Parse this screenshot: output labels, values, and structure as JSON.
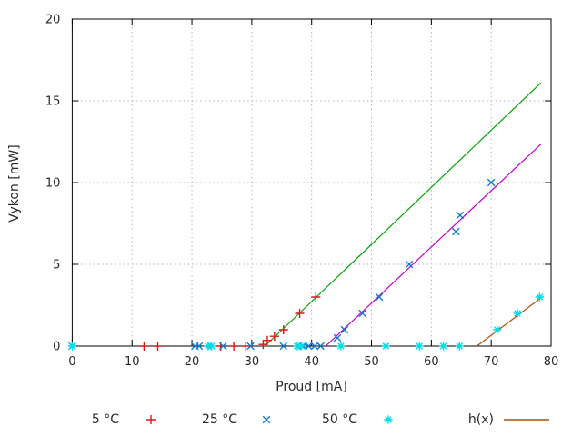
{
  "figure": {
    "background": "#ffffff",
    "text_color": "#2a2a2a",
    "border_color": "#000000",
    "grid_color": "#b3b3b3"
  },
  "chart_data": {
    "type": "scatter",
    "title": "",
    "xlabel": "Proud [mA]",
    "ylabel": "Vykon [mW]",
    "xlim": [
      0,
      80
    ],
    "ylim": [
      0,
      20
    ],
    "x_ticks": [
      0,
      10,
      20,
      30,
      40,
      50,
      60,
      70,
      80
    ],
    "y_ticks": [
      0,
      5,
      10,
      15,
      20
    ],
    "grid": "dotted",
    "legend_position": "bottom",
    "series": [
      {
        "name": "5 °C",
        "marker": "plus",
        "color": "#d91818",
        "points": [
          [
            12,
            0
          ],
          [
            14.3,
            0
          ],
          [
            24.8,
            0
          ],
          [
            27,
            0
          ],
          [
            29,
            0
          ],
          [
            31.9,
            0.1
          ],
          [
            32.6,
            0.35
          ],
          [
            33.8,
            0.6
          ],
          [
            35.3,
            1
          ],
          [
            38,
            2
          ],
          [
            40.7,
            3
          ]
        ]
      },
      {
        "name": "25 °C",
        "marker": "cross",
        "color": "#1079d2",
        "points": [
          [
            0,
            0
          ],
          [
            20.5,
            0
          ],
          [
            21.2,
            0
          ],
          [
            25.2,
            0
          ],
          [
            29.8,
            0
          ],
          [
            35.3,
            0
          ],
          [
            38.6,
            0
          ],
          [
            39.5,
            0
          ],
          [
            40.5,
            0
          ],
          [
            41.5,
            0
          ],
          [
            44.3,
            0.5
          ],
          [
            45.5,
            1
          ],
          [
            48.5,
            2
          ],
          [
            51.3,
            3
          ],
          [
            56.3,
            5
          ],
          [
            64.1,
            7
          ],
          [
            64.8,
            8
          ],
          [
            70,
            10
          ]
        ]
      },
      {
        "name": "50 °C",
        "marker": "asterisk",
        "color": "#00dde6",
        "points": [
          [
            0,
            0
          ],
          [
            22.7,
            0
          ],
          [
            23.3,
            0
          ],
          [
            37.6,
            0
          ],
          [
            38.3,
            0
          ],
          [
            44.9,
            0
          ],
          [
            52.4,
            0
          ],
          [
            58,
            0
          ],
          [
            62,
            0
          ],
          [
            64.7,
            0
          ],
          [
            71,
            1
          ],
          [
            74.4,
            2
          ],
          [
            78.1,
            3
          ]
        ]
      }
    ],
    "lines": [
      {
        "name": "fit-5C",
        "color": "#00a400",
        "from": [
          32.2,
          0
        ],
        "to": [
          78.3,
          16.1
        ]
      },
      {
        "name": "fit-25C",
        "color": "#c000cc",
        "from": [
          42.35,
          0
        ],
        "to": [
          78.3,
          12.35
        ]
      },
      {
        "name": "h(x)",
        "color": "#aa520a",
        "from": [
          67.6,
          0
        ],
        "to": [
          78.5,
          3.0
        ]
      }
    ],
    "legend": [
      {
        "label": "5 °C",
        "marker": "plus",
        "color": "#d91818"
      },
      {
        "label": "25 °C",
        "marker": "cross",
        "color": "#1079d2"
      },
      {
        "label": "50 °C",
        "marker": "asterisk",
        "color": "#00dde6"
      },
      {
        "label": "h(x)",
        "marker": "line",
        "color": "#aa520a"
      }
    ]
  }
}
